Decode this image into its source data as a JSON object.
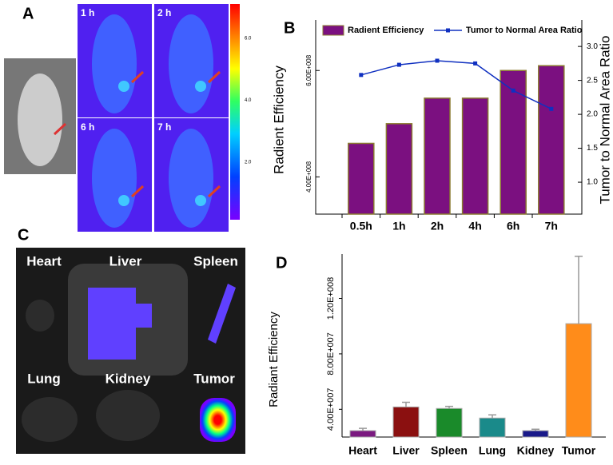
{
  "panel_labels": [
    "A",
    "B",
    "C",
    "D"
  ],
  "time_labels": [
    "1 h",
    "2 h",
    "6 h",
    "7 h"
  ],
  "colorbar": {
    "lim": [
      0.14,
      7.11
    ],
    "ticks": [
      {
        "value": 6,
        "label": "6.0"
      },
      {
        "value": 4,
        "label": "4.0"
      },
      {
        "value": 2,
        "label": "2.0"
      }
    ]
  },
  "organ_labels": [
    "Heart",
    "Liver",
    "Spleen",
    "Lung",
    "Kidney",
    "Tumor"
  ],
  "chart_data": [
    {
      "type": "bar_line",
      "categories": [
        "0.5h",
        "1h",
        "2h",
        "4h",
        "6h",
        "7h"
      ],
      "series": [
        {
          "name": "Radient Efficiency",
          "color": "#7b1080",
          "values": [
            463000000,
            500000000,
            548000000,
            548000000,
            600000000,
            609000000
          ]
        },
        {
          "name": "Tumor to Normal Area Ratio",
          "color": "#1030c0",
          "axis": "y2",
          "values": [
            2.58,
            2.73,
            2.79,
            2.75,
            2.35,
            2.08
          ]
        }
      ],
      "ylabel": "Radient Efficiency",
      "y2label": "Tumor to Normal Area Ratio",
      "ylim": [
        330000000,
        695000000
      ],
      "yticks": [
        {
          "value": 400000000,
          "label": "4.00E+008"
        },
        {
          "value": 600000000,
          "label": "6.00E+008"
        }
      ],
      "y2lim": [
        0.53,
        3.39
      ],
      "y2ticks": [
        {
          "value": 1,
          "label": "1.0"
        },
        1.5,
        {
          "value": 2,
          "label": "2.0"
        },
        2.5,
        {
          "value": 3,
          "label": "3.0"
        }
      ]
    },
    {
      "type": "bar",
      "categories": [
        "Heart",
        "Liver",
        "Spleen",
        "Lung",
        "Kidney",
        "Tumor"
      ],
      "values": [
        24600000,
        41700000,
        40600000,
        33700000,
        24600000,
        101800000
      ],
      "errors": [
        1700000,
        3400000,
        1500000,
        2300000,
        1000000,
        48600000
      ],
      "colors": [
        "#7b1a80",
        "#8b1010",
        "#1a8a2a",
        "#1a8a8a",
        "#1a1a8a",
        "#ff8c1a"
      ],
      "ylabel": "Radiant Efficiency",
      "ylim": [
        20000000,
        152000000
      ],
      "yticks": [
        {
          "value": 40000000,
          "label": "4.00E+007"
        },
        {
          "value": 80000000,
          "label": "8.00E+007"
        },
        {
          "value": 120000000,
          "label": "1.20E+008"
        }
      ]
    }
  ]
}
